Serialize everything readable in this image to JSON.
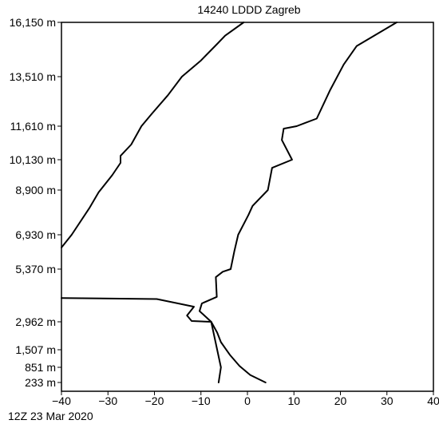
{
  "chart_data": {
    "type": "line",
    "title": "14240 LDDD Zagreb",
    "footer": "12Z 23 Mar 2020",
    "x_ticks": [
      "−40",
      "−30",
      "−20",
      "−10",
      "0",
      "10",
      "20",
      "30",
      "40"
    ],
    "xlim": [
      -40,
      40
    ],
    "y_ticks": [
      {
        "label": "233 m",
        "value": 233
      },
      {
        "label": "851 m",
        "value": 851
      },
      {
        "label": "1,507 m",
        "value": 1507
      },
      {
        "label": "2,962 m",
        "value": 2962
      },
      {
        "label": "5,370 m",
        "value": 5370
      },
      {
        "label": "6,930 m",
        "value": 6930
      },
      {
        "label": "8,900 m",
        "value": 8900
      },
      {
        "label": "10,130 m",
        "value": 10130
      },
      {
        "label": "11,610 m",
        "value": 11610
      },
      {
        "label": "13,510 m",
        "value": 13510
      },
      {
        "label": "16,150 m",
        "value": 16150
      }
    ],
    "series": [
      {
        "points": [
          [
            3.9,
            233
          ],
          [
            0.6,
            540
          ],
          [
            -1.7,
            900
          ],
          [
            -3.7,
            1300
          ],
          [
            -5.7,
            1900
          ],
          [
            -6.5,
            2400
          ],
          [
            -7.8,
            2962
          ],
          [
            -12,
            3000
          ],
          [
            -13,
            3250
          ],
          [
            -11.5,
            3650
          ],
          [
            -19.5,
            4000
          ],
          [
            -40,
            4050
          ]
        ]
      },
      {
        "points": [
          [
            -6.2,
            233
          ],
          [
            -5.7,
            851
          ],
          [
            -7.8,
            2962
          ],
          [
            -10.3,
            3450
          ],
          [
            -9.8,
            3800
          ],
          [
            -6.6,
            4100
          ],
          [
            -6.8,
            5000
          ],
          [
            -5.3,
            5250
          ],
          [
            -3.6,
            5370
          ],
          [
            -2.8,
            6200
          ],
          [
            -2.0,
            6930
          ],
          [
            0.2,
            7800
          ],
          [
            1.1,
            8200
          ],
          [
            4.4,
            8900
          ],
          [
            5.3,
            9800
          ],
          [
            9.6,
            10130
          ],
          [
            7.4,
            11000
          ],
          [
            7.8,
            11500
          ],
          [
            10.6,
            11610
          ],
          [
            14.9,
            11900
          ],
          [
            17.8,
            13000
          ],
          [
            20.7,
            14100
          ],
          [
            23.5,
            15000
          ],
          [
            32.1,
            16150
          ]
        ]
      },
      {
        "points": [
          [
            -40,
            6350
          ],
          [
            -37.8,
            6930
          ],
          [
            -34.0,
            8100
          ],
          [
            -32.0,
            8800
          ],
          [
            -29.1,
            9500
          ],
          [
            -27.3,
            10000
          ],
          [
            -27.3,
            10300
          ],
          [
            -25.0,
            10800
          ],
          [
            -22.8,
            11610
          ],
          [
            -20.5,
            12100
          ],
          [
            -17.1,
            12800
          ],
          [
            -14.1,
            13510
          ],
          [
            -10.0,
            14300
          ],
          [
            -6.5,
            15100
          ],
          [
            -4.8,
            15500
          ],
          [
            -0.8,
            16150
          ]
        ]
      }
    ]
  }
}
